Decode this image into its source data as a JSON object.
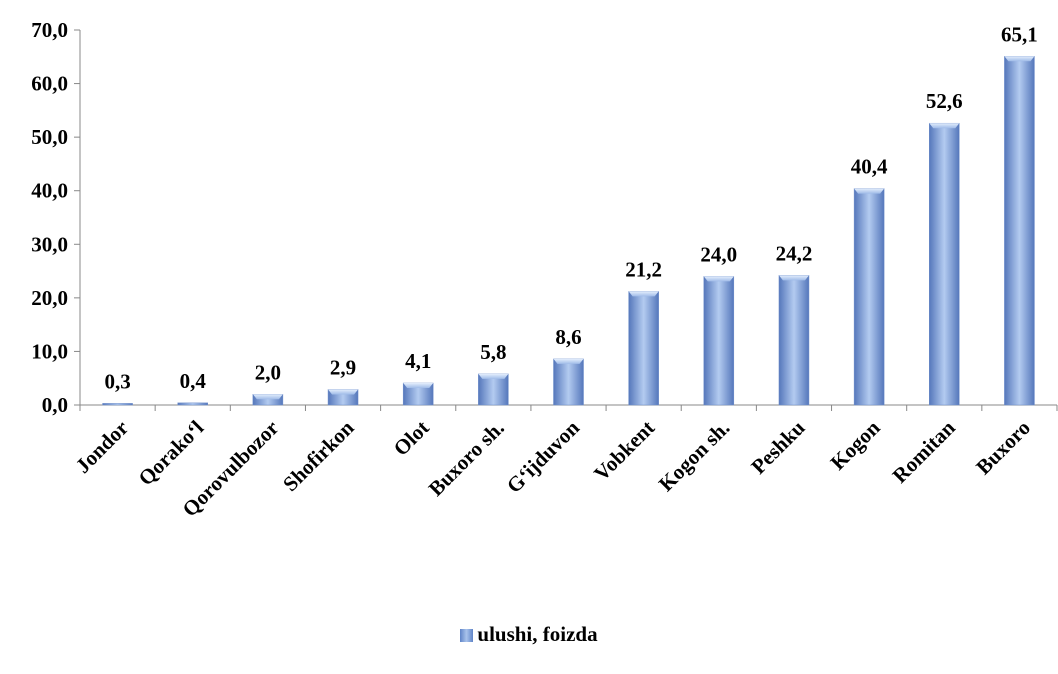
{
  "chart_data": {
    "type": "bar",
    "categories": [
      "Jondor",
      "Qorako‘l",
      "Qorovulbozor",
      "Shofirkon",
      "Olot",
      "Buxoro sh.",
      "G‘ijduvon",
      "Vobkent",
      "Kogon sh.",
      "Peshku",
      "Kogon",
      "Romitan",
      "Buxoro"
    ],
    "series": [
      {
        "name": "ulushi, foizda",
        "values": [
          0.3,
          0.4,
          2.0,
          2.9,
          4.1,
          5.8,
          8.6,
          21.2,
          24.0,
          24.2,
          40.4,
          52.6,
          65.1
        ],
        "labels": [
          "0,3",
          "0,4",
          "2,0",
          "2,9",
          "4,1",
          "5,8",
          "8,6",
          "21,2",
          "24,0",
          "24,2",
          "40,4",
          "52,6",
          "65,1"
        ],
        "color": "#8eb0e6"
      }
    ],
    "yticks": [
      "0,0",
      "10,0",
      "20,0",
      "30,0",
      "40,0",
      "50,0",
      "60,0",
      "70,0"
    ],
    "ylim": [
      0,
      70
    ],
    "grid": false,
    "legend": "bottom"
  }
}
